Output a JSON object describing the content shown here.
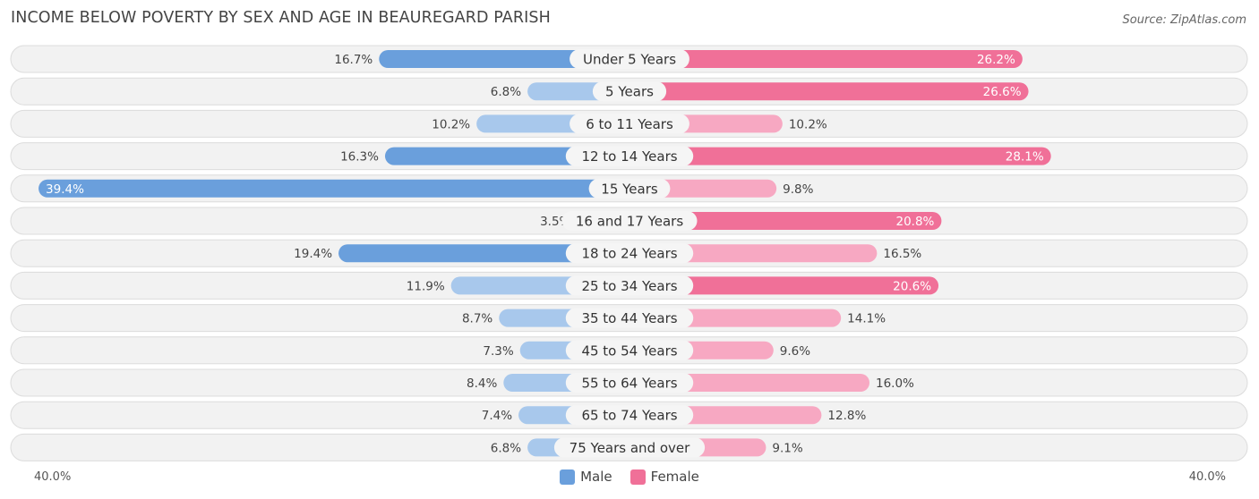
{
  "title": "INCOME BELOW POVERTY BY SEX AND AGE IN BEAUREGARD PARISH",
  "source": "Source: ZipAtlas.com",
  "colors": {
    "male_strong": "#6a9fdc",
    "male_light": "#a8c8ec",
    "female_strong": "#f07098",
    "female_light": "#f7a8c2",
    "row_bg": "#f2f2f2",
    "row_border": "#dcdcdc"
  },
  "axis": {
    "left_label": "40.0%",
    "right_label": "40.0%"
  },
  "legend": {
    "male": "Male",
    "female": "Female"
  },
  "chart_data": {
    "type": "bar",
    "orientation": "horizontal-diverging",
    "categories": [
      "Under 5 Years",
      "5 Years",
      "6 to 11 Years",
      "12 to 14 Years",
      "15 Years",
      "16 and 17 Years",
      "18 to 24 Years",
      "25 to 34 Years",
      "35 to 44 Years",
      "45 to 54 Years",
      "55 to 64 Years",
      "65 to 74 Years",
      "75 Years and over"
    ],
    "series": [
      {
        "name": "Male",
        "values": [
          16.7,
          6.8,
          10.2,
          16.3,
          39.4,
          3.5,
          19.4,
          11.9,
          8.7,
          7.3,
          8.4,
          7.4,
          6.8
        ],
        "labels": [
          "16.7%",
          "6.8%",
          "10.2%",
          "16.3%",
          "39.4%",
          "3.5%",
          "19.4%",
          "11.9%",
          "8.7%",
          "7.3%",
          "8.4%",
          "7.4%",
          "6.8%"
        ]
      },
      {
        "name": "Female",
        "values": [
          26.2,
          26.6,
          10.2,
          28.1,
          9.8,
          20.8,
          16.5,
          20.6,
          14.1,
          9.6,
          16.0,
          12.8,
          9.1
        ],
        "labels": [
          "26.2%",
          "26.6%",
          "10.2%",
          "28.1%",
          "9.8%",
          "20.8%",
          "16.5%",
          "20.6%",
          "14.1%",
          "9.6%",
          "16.0%",
          "12.8%",
          "9.1%"
        ]
      }
    ],
    "xlim": [
      -40,
      40
    ],
    "legend_position": "bottom-center"
  }
}
